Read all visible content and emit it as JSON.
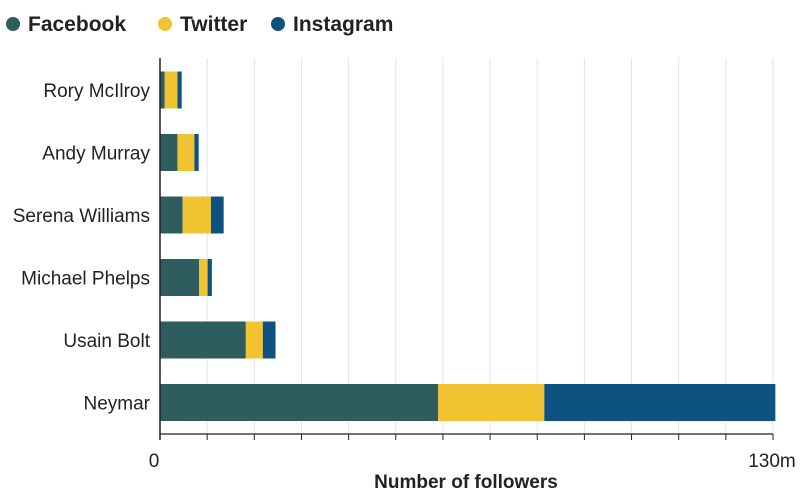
{
  "chart_data": {
    "type": "bar",
    "orientation": "horizontal",
    "stacked": true,
    "title": "",
    "xlabel": "Number of followers",
    "ylabel": "",
    "xlim": [
      0,
      130
    ],
    "unit": "m",
    "x_tick_labels": [
      "0",
      "130m"
    ],
    "categories": [
      "Rory McIlroy",
      "Andy Murray",
      "Serena Williams",
      "Michael Phelps",
      "Usain Bolt",
      "Neymar"
    ],
    "series": [
      {
        "name": "Facebook",
        "color": "#2f5c5f",
        "values": [
          1.0,
          3.7,
          4.8,
          8.3,
          18.2,
          59.0
        ]
      },
      {
        "name": "Twitter",
        "color": "#f1c330",
        "values": [
          2.7,
          3.6,
          6.0,
          1.8,
          3.6,
          22.5
        ]
      },
      {
        "name": "Instagram",
        "color": "#0d5280",
        "values": [
          0.9,
          0.9,
          2.7,
          0.9,
          2.7,
          49.0
        ]
      }
    ],
    "legend_position": "top-left",
    "grid": true
  }
}
